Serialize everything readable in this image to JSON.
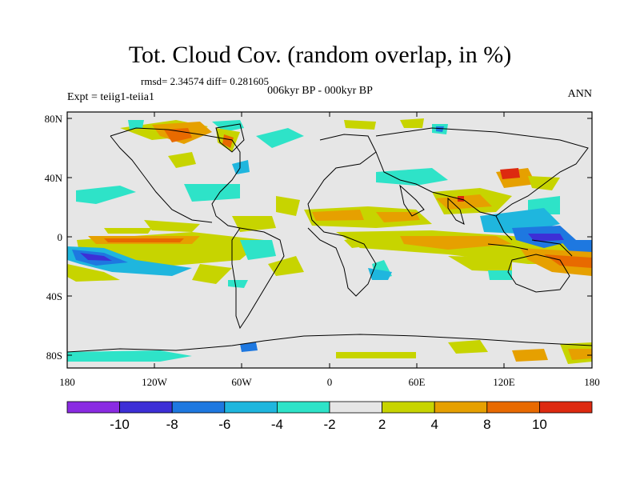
{
  "title": "Tot. Cloud Cov. (random overlap, in %)",
  "stats": "rmsd= 2.34574  diff= 0.281605",
  "subtitle": "006kyr BP - 000kyr BP",
  "experiment": "Expt = teiig1-teiia1",
  "season": "ANN",
  "lat_ticks": [
    "80N",
    "40N",
    "0",
    "40S",
    "80S"
  ],
  "lon_ticks": [
    "180",
    "120W",
    "60W",
    "0",
    "60E",
    "120E",
    "180"
  ],
  "colorbar": {
    "colors": [
      "#8a2be2",
      "#3d2fd6",
      "#1e78e0",
      "#1fb6de",
      "#2ee3c8",
      "#e6e6e6",
      "#c7d400",
      "#e6a000",
      "#e86a00",
      "#dd2a10"
    ],
    "tick_labels": [
      "-10",
      "-8",
      "-6",
      "-4",
      "-2",
      "2",
      "4",
      "8",
      "10"
    ]
  }
}
